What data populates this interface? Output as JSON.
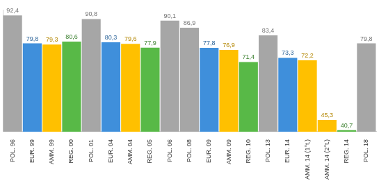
{
  "chart_data": {
    "type": "bar",
    "categories": [
      "POL. 96",
      "EUR. 99",
      "AMM. 99",
      "REG. 00",
      "POL. 01",
      "EUR. 04",
      "AMM. 04",
      "REG. 05",
      "POL. 06",
      "POL. 08",
      "EUR. 09",
      "AMM. 09",
      "REG. 10",
      "POL. 13",
      "EUR. 14",
      "AMM. 14 (1°t.)",
      "AMM. 14 (2°t.)",
      "REG. 14",
      "POL. 18"
    ],
    "values": [
      92.4,
      79.8,
      79.3,
      80.6,
      90.8,
      80.3,
      79.6,
      77.9,
      90.1,
      86.9,
      77.8,
      76.9,
      71.4,
      83.4,
      73.3,
      72.2,
      45.3,
      40.7,
      79.8
    ],
    "value_labels": [
      "92,4",
      "79,8",
      "79,3",
      "80,6",
      "90,8",
      "80,3",
      "79,6",
      "77,9",
      "90,1",
      "86,9",
      "77,8",
      "76,9",
      "71,4",
      "83,4",
      "73,3",
      "72,2",
      "45,3",
      "40,7",
      "79,8"
    ],
    "colors": [
      "#a6a6a6",
      "#3f8fdb",
      "#ffc000",
      "#58b947",
      "#a6a6a6",
      "#3f8fdb",
      "#ffc000",
      "#58b947",
      "#a6a6a6",
      "#a6a6a6",
      "#3f8fdb",
      "#ffc000",
      "#58b947",
      "#a6a6a6",
      "#3f8fdb",
      "#ffc000",
      "#ffc000",
      "#58b947",
      "#a6a6a6"
    ],
    "ylim": [
      40,
      95
    ],
    "data_labels": true,
    "tick_labels": "x",
    "grid": false
  }
}
